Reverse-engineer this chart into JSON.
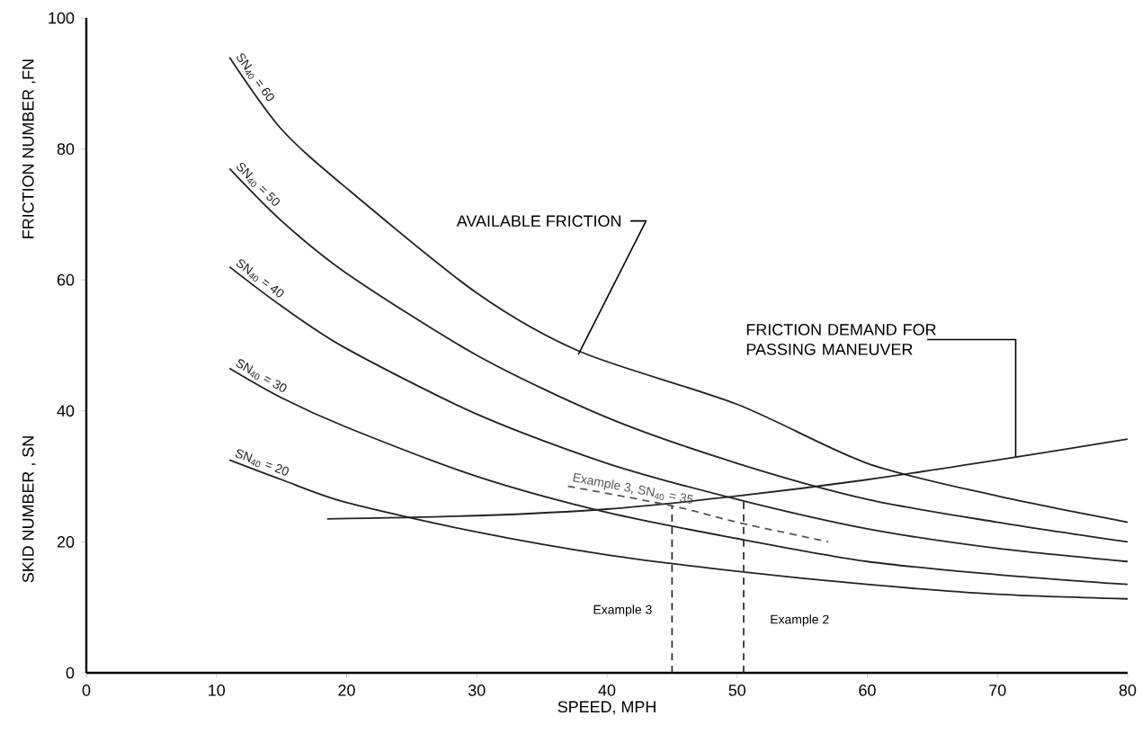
{
  "chart_data": {
    "type": "line",
    "xlabel": "SPEED, MPH",
    "ylabel": "SKID NUMBER , SN",
    "xlim": [
      0,
      80
    ],
    "ylim": [
      0,
      100
    ],
    "xticks": [
      0,
      10,
      20,
      30,
      40,
      50,
      60,
      70,
      80
    ],
    "yticks": [
      0,
      20,
      40,
      60,
      80,
      100
    ],
    "series": [
      {
        "name": "SN$_{40}$ = 60",
        "color": "#222222",
        "x": [
          11,
          15,
          20,
          30,
          38,
          50,
          60,
          70,
          80
        ],
        "values": [
          94,
          83,
          74,
          58,
          49,
          41,
          32,
          27,
          23
        ]
      },
      {
        "name": "SN$_{40}$ = 50",
        "color": "#222222",
        "x": [
          11,
          15,
          20,
          30,
          40,
          50,
          60,
          70,
          80
        ],
        "values": [
          77,
          69,
          61,
          48.5,
          39,
          32,
          26.5,
          23,
          20
        ]
      },
      {
        "name": "SN$_{40}$ = 40",
        "color": "#222222",
        "x": [
          11,
          15,
          20,
          30,
          40,
          50,
          60,
          70,
          80
        ],
        "values": [
          62,
          56,
          49.5,
          39.5,
          32,
          26.5,
          22,
          19,
          17
        ]
      },
      {
        "name": "SN$_{40}$ = 30",
        "color": "#222222",
        "x": [
          11,
          15,
          20,
          30,
          40,
          50,
          60,
          70,
          80
        ],
        "values": [
          46.5,
          42,
          37.5,
          30,
          24.5,
          20.5,
          17,
          15,
          13.5
        ]
      },
      {
        "name": "SN$_{40}$ = 20",
        "color": "#222222",
        "x": [
          11,
          15,
          20,
          30,
          40,
          50,
          60,
          70,
          80
        ],
        "values": [
          32.5,
          29.5,
          26,
          21.5,
          18,
          15.5,
          13.5,
          12,
          11.3
        ]
      },
      {
        "color": "#222222",
        "x": [
          18.5,
          30,
          40,
          50,
          60,
          70,
          80
        ],
        "values": [
          23.5,
          24,
          25,
          27,
          29.5,
          32.5,
          35.7
        ]
      },
      {
        "name": "Example 3, SN$_{40}$ = 35",
        "color": "#555555",
        "line_style": "dashed",
        "x": [
          37,
          45,
          50,
          57
        ],
        "values": [
          28.5,
          25.5,
          23,
          20
        ]
      },
      {
        "color": "#333333",
        "line_style": "dashed",
        "x": [
          45,
          45
        ],
        "values": [
          0,
          25.5
        ]
      },
      {
        "color": "#333333",
        "line_style": "dashed",
        "x": [
          50.5,
          50.5
        ],
        "values": [
          0,
          27
        ]
      }
    ],
    "annotations": [
      "FRICTION NUMBER ,FN",
      {
        "text": "AVAILABLE FRICTION",
        "x": 37.8,
        "y": 48.6
      },
      {
        "text": "FRICTION DEMAND FOR PASSING MANEUVER",
        "x": 71.4,
        "y": 33.0
      },
      "Example 3",
      "Example 2"
    ]
  }
}
